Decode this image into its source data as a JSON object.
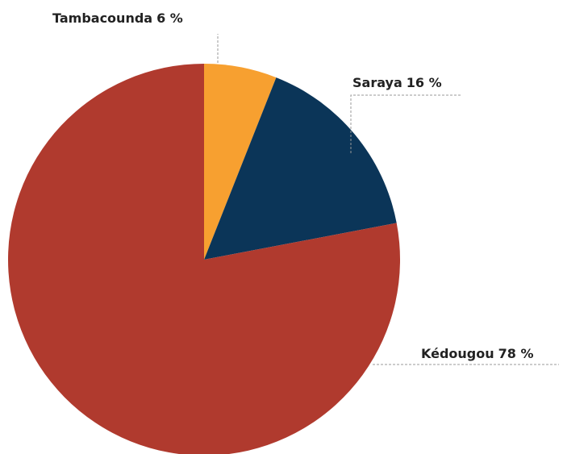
{
  "chart_data": {
    "type": "pie",
    "categories": [
      "Tambacounda",
      "Saraya",
      "Kédougou"
    ],
    "values": [
      6,
      16,
      78
    ],
    "value_labels": [
      "6 %",
      "16 %",
      "78 %"
    ],
    "colors": [
      "#f7a030",
      "#0b3558",
      "#b03a2e"
    ]
  }
}
